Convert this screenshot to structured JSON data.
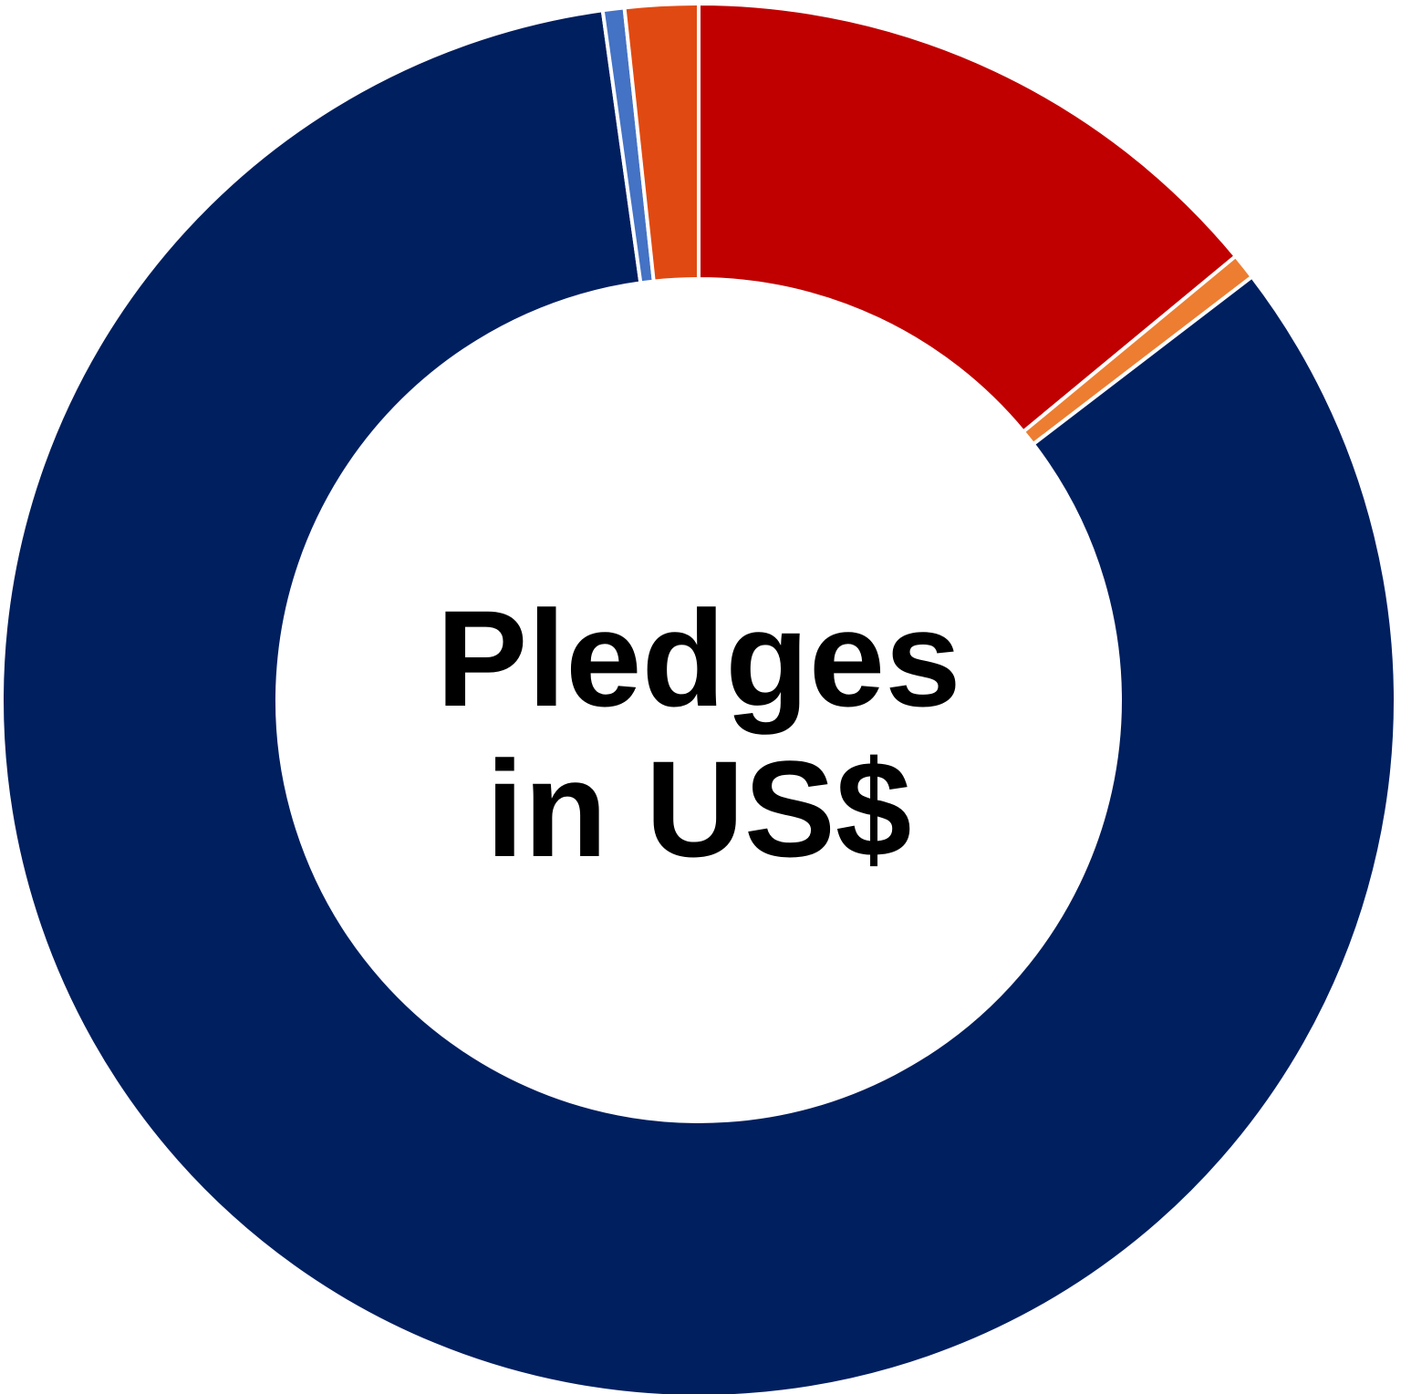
{
  "chart_data": {
    "type": "pie",
    "variant": "donut",
    "center_text": [
      "Pledges",
      "in US$"
    ],
    "slices": [
      {
        "value": 14.0,
        "color": "#C00000"
      },
      {
        "value": 0.6,
        "color": "#ED7D31"
      },
      {
        "value": 83.2,
        "color": "#001F5F"
      },
      {
        "value": 0.5,
        "color": "#4472C4"
      },
      {
        "value": 1.7,
        "color": "#E04A12"
      }
    ],
    "start_angle_deg": 0,
    "direction": "clockwise",
    "separator_color": "#FFFFFF"
  }
}
